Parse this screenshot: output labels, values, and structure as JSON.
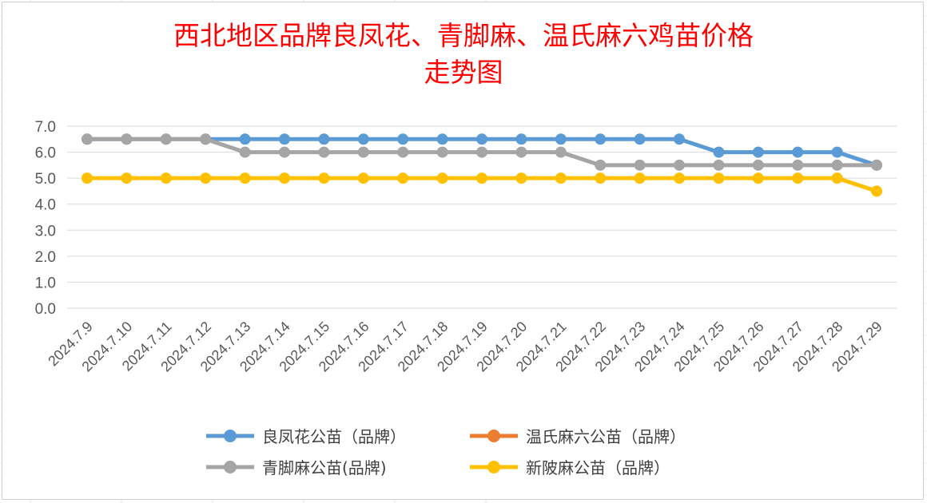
{
  "chart_data": {
    "type": "line",
    "title_line1": "西北地区品牌良凤花、青脚麻、温氏麻六鸡苗价格",
    "title_line2": "走势图",
    "categories": [
      "2024.7.9",
      "2024.7.10",
      "2024.7.11",
      "2024.7.12",
      "2024.7.13",
      "2024.7.14",
      "2024.7.15",
      "2024.7.16",
      "2024.7.17",
      "2024.7.18",
      "2024.7.19",
      "2024.7.20",
      "2024.7.21",
      "2024.7.22",
      "2024.7.23",
      "2024.7.24",
      "2024.7.25",
      "2024.7.26",
      "2024.7.27",
      "2024.7.28",
      "2024.7.29"
    ],
    "y_ticks": [
      "0.0",
      "1.0",
      "2.0",
      "3.0",
      "4.0",
      "5.0",
      "6.0",
      "7.0"
    ],
    "ylim": [
      0,
      7
    ],
    "grid": true,
    "legend_position": "bottom",
    "series": [
      {
        "name": "良凤花公苗（品牌）",
        "color": "#5b9bd5",
        "values": [
          6.5,
          6.5,
          6.5,
          6.5,
          6.5,
          6.5,
          6.5,
          6.5,
          6.5,
          6.5,
          6.5,
          6.5,
          6.5,
          6.5,
          6.5,
          6.5,
          6.0,
          6.0,
          6.0,
          6.0,
          5.5
        ]
      },
      {
        "name": "温氏麻六公苗（品牌）",
        "color": "#ed7d31",
        "values": [
          null,
          null,
          null,
          null,
          null,
          null,
          null,
          null,
          null,
          null,
          null,
          null,
          null,
          null,
          null,
          null,
          null,
          null,
          null,
          null,
          null
        ]
      },
      {
        "name": "青脚麻公苗(品牌)",
        "color": "#a5a5a5",
        "values": [
          6.5,
          6.5,
          6.5,
          6.5,
          6.0,
          6.0,
          6.0,
          6.0,
          6.0,
          6.0,
          6.0,
          6.0,
          6.0,
          5.5,
          5.5,
          5.5,
          5.5,
          5.5,
          5.5,
          5.5,
          5.5
        ]
      },
      {
        "name": "新陂麻公苗（品牌）",
        "color": "#ffc000",
        "values": [
          5.0,
          5.0,
          5.0,
          5.0,
          5.0,
          5.0,
          5.0,
          5.0,
          5.0,
          5.0,
          5.0,
          5.0,
          5.0,
          5.0,
          5.0,
          5.0,
          5.0,
          5.0,
          5.0,
          5.0,
          4.5
        ]
      }
    ]
  }
}
